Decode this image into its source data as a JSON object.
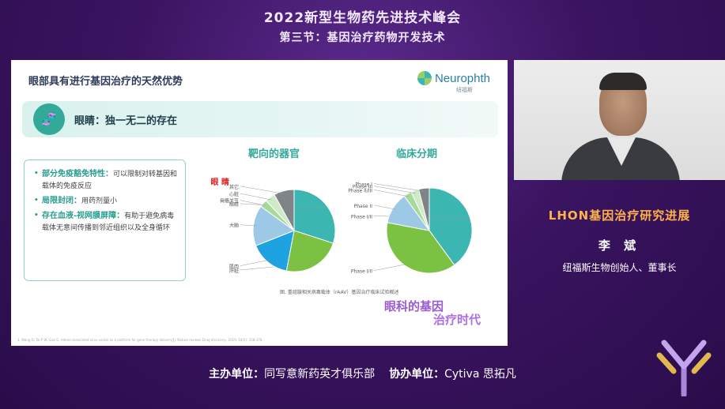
{
  "header": {
    "conference_title": "2022新型生物药先进技术峰会",
    "session_title": "第三节：基因治疗药物开发技术"
  },
  "slide": {
    "title": "眼部具有进行基因治疗的天然优势",
    "logo_text": "Neurophth",
    "logo_sub": "纽福斯",
    "section_heading": "眼睛：独一无二的存在",
    "bullets": [
      {
        "key": "部分免疫豁免特性：",
        "text": "可以限制对转基因和载体的免疫反应"
      },
      {
        "key": "局限封闭：",
        "text": "用药剂量小"
      },
      {
        "key": "存在血液-视网膜屏障：",
        "text": "有助于避免病毒载体无意间传播到邻近组织以及全身循环"
      }
    ],
    "footnote": "1. Wang D, Tai P W, Gao G. Adeno-associated virus vector as a platform for gene therapy delivery[J]. Nature reviews Drug discovery, 2019, 18(5): 358-378.",
    "watermark_line1": "眼科的基因",
    "watermark_line2": "治疗时代",
    "caption": "图. 重组腺相关病毒载体（rAAV）基因治疗临床试验概述"
  },
  "chart_data": [
    {
      "type": "pie",
      "title": "靶向的器官",
      "highlight_label": "眼 睛",
      "slices": [
        {
          "label": "眼睛",
          "value": 30,
          "color": "#3bb6b0"
        },
        {
          "label": "肝脏",
          "value": 23,
          "color": "#7cc242"
        },
        {
          "label": "肌肉",
          "value": 16,
          "color": "#1fa3e0"
        },
        {
          "label": "大脑",
          "value": 16,
          "color": "#9ec9e6"
        },
        {
          "label": "骨骼关节",
          "value": 3,
          "color": "#a7d99a"
        },
        {
          "label": "心脏",
          "value": 4,
          "color": "#cfeac6"
        },
        {
          "label": "其它",
          "value": 8,
          "color": "#7f8488"
        }
      ]
    },
    {
      "type": "pie",
      "title": "临床分期",
      "slices": [
        {
          "label": "Phase I/II",
          "value": 40,
          "color": "#3bb6b0"
        },
        {
          "label": "Phase I/II",
          "value": 38,
          "color": "#7cc242"
        },
        {
          "label": "Phase II",
          "value": 12,
          "color": "#9ec9e6"
        },
        {
          "label": "Phase II/III",
          "value": 3,
          "color": "#a7d99a"
        },
        {
          "label": "Phase III",
          "value": 3,
          "color": "#cfeac6"
        },
        {
          "label": "Phase I",
          "value": 4,
          "color": "#7f8488"
        }
      ]
    }
  ],
  "speaker": {
    "talk_title": "LHON基因治疗研究进展",
    "name": "李 斌",
    "role": "纽福斯生物创始人、董事长"
  },
  "footer": {
    "host_label": "主办单位：",
    "host": "同写意新药英才俱乐部",
    "cohost_label": "协办单位：",
    "cohost": "Cytiva 思拓凡"
  }
}
